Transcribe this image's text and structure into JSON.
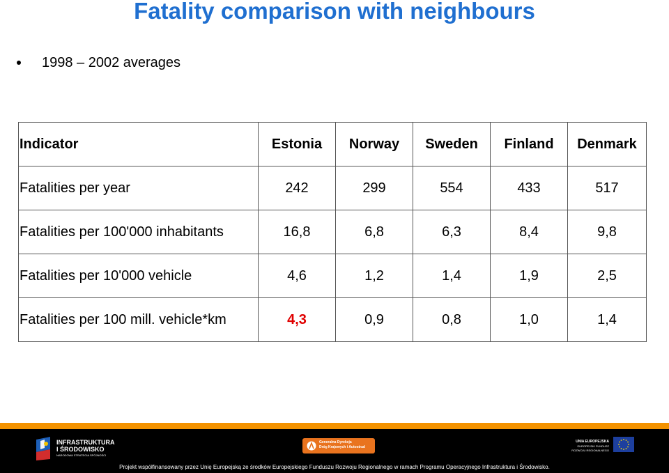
{
  "title": "Fatality comparison with neighbours",
  "bullet": "1998 – 2002 averages",
  "table": {
    "header": [
      "Indicator",
      "Estonia",
      "Norway",
      "Sweden",
      "Finland",
      "Denmark"
    ],
    "rows": [
      [
        "Fatalities per year",
        "242",
        "299",
        "554",
        "433",
        "517"
      ],
      [
        "Fatalities per 100'000 inhabitants",
        "16,8",
        "6,8",
        "6,3",
        "8,4",
        "9,8"
      ],
      [
        "Fatalities per 10'000 vehicle",
        "4,6",
        "1,2",
        "1,4",
        "1,9",
        "2,5"
      ],
      [
        "Fatalities per 100 mill. vehicle*km",
        "4,3",
        "0,9",
        "0,8",
        "1,0",
        "1,4"
      ]
    ],
    "highlight_color": "#e00000"
  },
  "footer": {
    "left_logo": {
      "line1": "INFRASTRUKTURA",
      "line2": "I ŚRODOWISKO",
      "line3": "NARODOWA STRATEGIA SPÓJNOŚCI"
    },
    "center_logo": {
      "line1": "Generalna Dyrekcja",
      "line2": "Dróg Krajowych i Autostrad"
    },
    "right_logo": {
      "line1": "UNIA EUROPEJSKA",
      "line2": "EUROPEJSKI FUNDUSZ",
      "line3": "ROZWOJU REGIONALNEGO"
    },
    "note": "Projekt współfinansowany przez Unię Europejską ze środków Europejskiego Funduszu Rozwoju Regionalnego w ramach Programu Operacyjnego Infrastruktura i Środowisko."
  },
  "colors": {
    "title": "#1f6fd0",
    "footer_bar": "#000000",
    "footer_stripe": "#f39200",
    "center_logo_bg": "#e9731e",
    "eu_flag_bg": "#1d3f9e",
    "eu_stars": "#ffdd00"
  }
}
